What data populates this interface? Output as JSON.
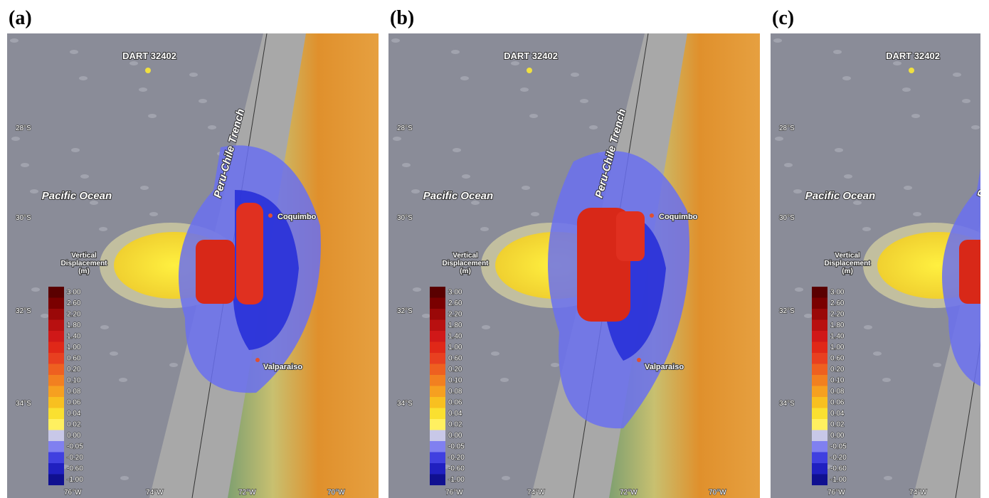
{
  "panels": [
    {
      "label": "(a)"
    },
    {
      "label": "(b)"
    },
    {
      "label": "(c)"
    }
  ],
  "map_labels": {
    "dart": "DART 32402",
    "trench": "Peru-Chile Trench",
    "ocean": "Pacific Ocean",
    "city1": "Coquimbo",
    "city2": "Valparaiso"
  },
  "legend": {
    "title": [
      "Vertical",
      "Displacement",
      "(m)"
    ],
    "ticks": [
      "3.00",
      "2.60",
      "2.20",
      "1.80",
      "1.40",
      "1.00",
      "0.60",
      "0.20",
      "0.10",
      "0.08",
      "0.06",
      "0.04",
      "0.02",
      "0.00",
      "-0.05",
      "-0.20",
      "-0.60",
      "-1.00"
    ]
  },
  "lat_labels": [
    "28°S",
    "30°S",
    "32°S",
    "34°S"
  ],
  "lon_labels": [
    "76°W",
    "74°W",
    "72°W",
    "70°W"
  ]
}
